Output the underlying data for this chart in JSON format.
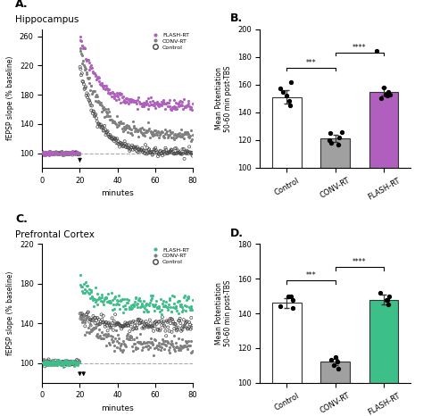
{
  "panel_A_title": "A.",
  "panel_A_subtitle": "Hippocampus",
  "panel_B_title": "B.",
  "panel_C_title": "C.",
  "panel_C_subtitle": "Prefrontal Cortex",
  "panel_D_title": "D.",
  "flash_color_hippo": "#B05FBF",
  "conv_color_hippo": "#808080",
  "flash_color_pfc": "#3DBF8A",
  "conv_color_pfc": "#808080",
  "bar_control_hippo": 151,
  "bar_conv_hippo": 121,
  "bar_flash_hippo": 155,
  "bar_ylim_hippo": [
    100,
    200
  ],
  "bar_yticks_hippo": [
    100,
    120,
    140,
    160,
    180,
    200
  ],
  "bar_control_pfc": 146,
  "bar_conv_pfc": 112,
  "bar_flash_pfc": 148,
  "bar_ylim_pfc": [
    100,
    180
  ],
  "bar_yticks_pfc": [
    100,
    120,
    140,
    160,
    180
  ],
  "dots_control_hippo": [
    162,
    157,
    148,
    145,
    152,
    155
  ],
  "dots_conv_hippo": [
    118,
    122,
    125,
    120,
    117,
    126
  ],
  "dots_flash_hippo": [
    184,
    158,
    155,
    153,
    152,
    150,
    153
  ],
  "dots_control_pfc": [
    150,
    148,
    143,
    150,
    144
  ],
  "dots_conv_pfc": [
    108,
    110,
    115,
    112,
    113
  ],
  "dots_flash_pfc": [
    152,
    148,
    145,
    150,
    148
  ],
  "line_ylim_hippo": [
    80,
    270
  ],
  "line_yticks_hippo": [
    100,
    140,
    180,
    220,
    260
  ],
  "line_ylim_pfc": [
    80,
    220
  ],
  "line_yticks_pfc": [
    100,
    140,
    180,
    220
  ],
  "xlabel": "minutes",
  "ylabel_line": "fEPSP slope (% baseline)",
  "ylabel_bar_hippo": "Mean Potentiation\n50-60 min post-TBS",
  "ylabel_bar_pfc": "Mean Potentiation\n50-60 min post-TBS",
  "background": "#FFFFFF"
}
